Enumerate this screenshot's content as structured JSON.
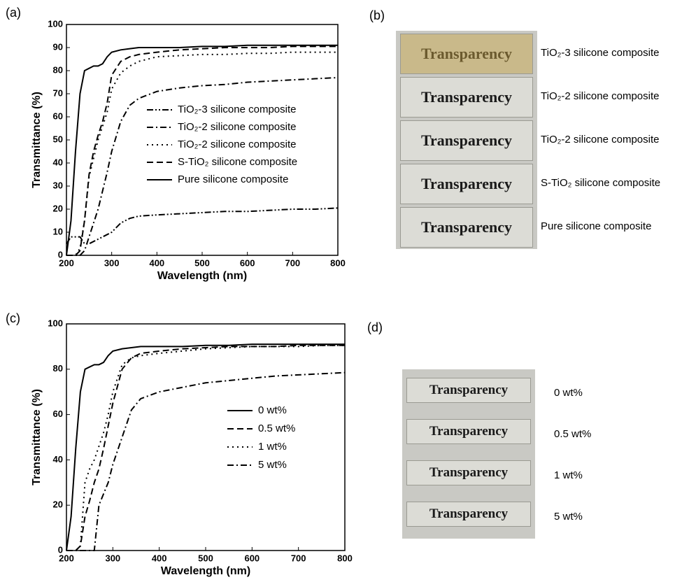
{
  "panel_labels": [
    "(a)",
    "(b)",
    "(c)",
    "(d)"
  ],
  "chart_data": [
    {
      "type": "line",
      "xlabel": "Wavelength (nm)",
      "ylabel": "Transmittance (%)",
      "x": [
        200,
        210,
        220,
        230,
        240,
        250,
        260,
        270,
        280,
        290,
        300,
        320,
        340,
        360,
        400,
        450,
        500,
        550,
        600,
        650,
        700,
        750,
        800
      ],
      "xlim": [
        200,
        800
      ],
      "xticks": [
        200,
        300,
        400,
        500,
        600,
        700,
        800
      ],
      "ylim": [
        0,
        100
      ],
      "yticks": [
        0,
        10,
        20,
        30,
        40,
        50,
        60,
        70,
        80,
        90,
        100
      ],
      "series": [
        {
          "name": "TiO₂-3 silicone composite",
          "color": "#000000",
          "dash": "dashdotdot",
          "values": [
            5,
            8,
            8,
            8,
            5,
            5,
            6,
            7,
            8,
            9,
            10,
            14,
            16,
            17,
            17.5,
            18,
            18.5,
            19,
            19,
            19.5,
            20,
            20,
            20.5
          ]
        },
        {
          "name": "TiO₂-2 silicone composite",
          "color": "#000000",
          "dash": "dashdot",
          "values": [
            0,
            0,
            0,
            0,
            2,
            8,
            14,
            20,
            28,
            36,
            45,
            58,
            65,
            68,
            71,
            72.5,
            73.5,
            74,
            75,
            75.5,
            76,
            76.5,
            77
          ]
        },
        {
          "name": "TiO₂-2 silicone composite",
          "color": "#000000",
          "dash": "dotted",
          "values": [
            0,
            0,
            0,
            3,
            15,
            34,
            42,
            50,
            56,
            62,
            72,
            79,
            82,
            84,
            86,
            86.5,
            87,
            87,
            87.5,
            87.5,
            88,
            88,
            88
          ]
        },
        {
          "name": "S-TiO₂ silicone composite",
          "color": "#000000",
          "dash": "dashed",
          "values": [
            0,
            0,
            0,
            2,
            15,
            35,
            45,
            52,
            58,
            66,
            78,
            84,
            86,
            87,
            88,
            89,
            89.5,
            90,
            90,
            90,
            90.5,
            90.5,
            90.5
          ]
        },
        {
          "name": "Pure silicone composite",
          "color": "#000000",
          "dash": "solid",
          "values": [
            0,
            15,
            45,
            70,
            80,
            81,
            82,
            82,
            83,
            86,
            88,
            89,
            89.5,
            90,
            90,
            90,
            90.5,
            90.5,
            91,
            91,
            91,
            91,
            91
          ]
        }
      ]
    },
    {
      "type": "line",
      "xlabel": "Wavelength (nm)",
      "ylabel": "Transmittance (%)",
      "x": [
        200,
        210,
        220,
        230,
        240,
        250,
        260,
        270,
        280,
        290,
        300,
        320,
        340,
        360,
        400,
        450,
        500,
        550,
        600,
        650,
        700,
        750,
        800
      ],
      "xlim": [
        200,
        800
      ],
      "xticks": [
        200,
        300,
        400,
        500,
        600,
        700,
        800
      ],
      "ylim": [
        0,
        100
      ],
      "yticks": [
        0,
        20,
        40,
        60,
        80,
        100
      ],
      "series": [
        {
          "name": "0 wt%",
          "color": "#000000",
          "dash": "solid",
          "values": [
            0,
            15,
            45,
            70,
            80,
            81,
            82,
            82,
            83,
            86,
            88,
            89,
            89.5,
            90,
            90,
            90,
            90.5,
            90.5,
            91,
            91,
            91,
            91,
            91
          ]
        },
        {
          "name": "0.5 wt%",
          "color": "#000000",
          "dash": "dashed",
          "values": [
            0,
            0,
            0,
            2,
            15,
            22,
            30,
            36,
            45,
            55,
            65,
            80,
            85,
            87,
            88,
            89,
            89.5,
            90,
            90,
            90,
            90.5,
            90.5,
            90.5
          ]
        },
        {
          "name": "1 wt%",
          "color": "#000000",
          "dash": "dotted",
          "values": [
            0,
            0,
            0,
            2,
            30,
            36,
            40,
            46,
            52,
            60,
            70,
            82,
            85,
            86,
            87,
            88,
            89,
            89.5,
            90,
            90,
            90,
            90.5,
            90.5
          ]
        },
        {
          "name": "5 wt%",
          "color": "#000000",
          "dash": "dashdot",
          "values": [
            0,
            0,
            0,
            0,
            0,
            0,
            0,
            20,
            25,
            30,
            38,
            50,
            62,
            67,
            70,
            72,
            74,
            75,
            76,
            77,
            77.5,
            78,
            78.5
          ]
        }
      ]
    }
  ],
  "photo_b": {
    "samples": [
      {
        "text": "Transparency",
        "label": "TiO₂-3 silicone composite"
      },
      {
        "text": "Transparency",
        "label": "TiO₂-2 silicone composite"
      },
      {
        "text": "Transparency",
        "label": "TiO₂-2 silicone composite"
      },
      {
        "text": "Transparency",
        "label": "S-TiO₂ silicone composite"
      },
      {
        "text": "Transparency",
        "label": "Pure silicone composite"
      }
    ]
  },
  "photo_d": {
    "samples": [
      {
        "text": "Transparency",
        "label": "0 wt%"
      },
      {
        "text": "Transparency",
        "label": "0.5 wt%"
      },
      {
        "text": "Transparency",
        "label": "1 wt%"
      },
      {
        "text": "Transparency",
        "label": "5 wt%"
      }
    ]
  }
}
